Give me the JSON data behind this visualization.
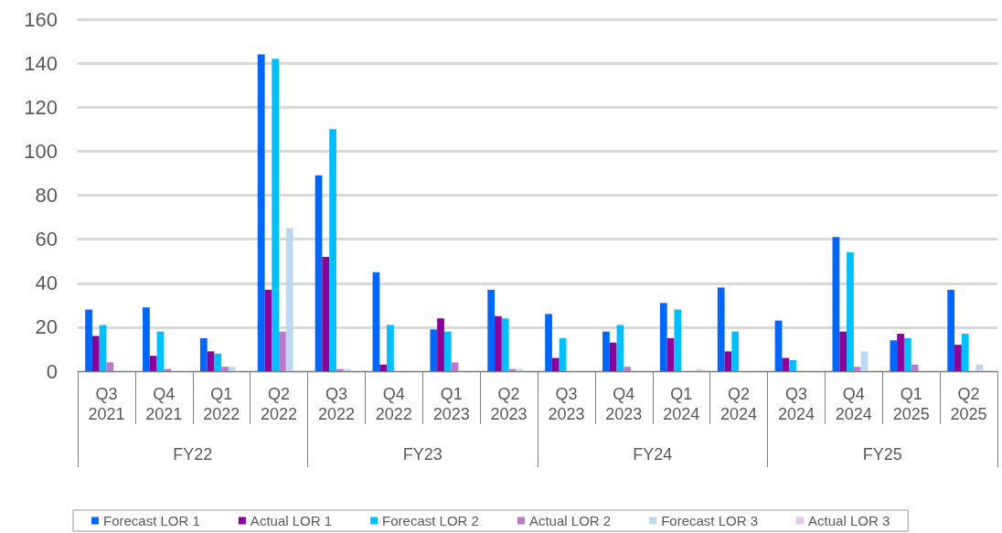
{
  "chart_data": {
    "type": "bar",
    "categories": [
      "Q3\n2021",
      "Q4\n2021",
      "Q1\n2022",
      "Q2\n2022",
      "Q3\n2022",
      "Q4\n2022",
      "Q1\n2023",
      "Q2\n2023",
      "Q3\n2023",
      "Q4\n2023",
      "Q1\n2024",
      "Q2\n2024",
      "Q3\n2024",
      "Q4\n2024",
      "Q1\n2025",
      "Q2\n2025"
    ],
    "annotations": [
      "FY22",
      "FY23",
      "FY24",
      "FY25"
    ],
    "series": [
      {
        "name": "Forecast LOR 1",
        "color": "#0066ff",
        "values": [
          28,
          29,
          15,
          144,
          89,
          45,
          19,
          37,
          26,
          18,
          31,
          38,
          23,
          61,
          14,
          37
        ]
      },
      {
        "name": "Actual LOR 1",
        "color": "#8b0099",
        "values": [
          16,
          7,
          9,
          37,
          52,
          3,
          24,
          25,
          6,
          13,
          15,
          9,
          6,
          18,
          17,
          12
        ]
      },
      {
        "name": "Forecast LOR 2",
        "color": "#00bfff",
        "values": [
          21,
          18,
          8,
          142,
          110,
          21,
          18,
          24,
          15,
          21,
          28,
          18,
          5,
          54,
          15,
          17
        ]
      },
      {
        "name": "Actual LOR 2",
        "color": "#bf77c8",
        "values": [
          4,
          1,
          2,
          18,
          1,
          0,
          4,
          1,
          0,
          2,
          0,
          0,
          0,
          2,
          3,
          0
        ]
      },
      {
        "name": "Forecast LOR 3",
        "color": "#bdd7ee",
        "values": [
          0,
          0,
          2,
          65,
          1,
          0,
          0,
          1,
          0,
          0,
          0,
          0,
          0,
          9,
          0,
          3
        ]
      },
      {
        "name": "Actual LOR 3",
        "color": "#e4c8ec",
        "values": [
          0,
          0,
          0,
          0,
          0,
          0,
          0,
          0,
          0,
          0,
          1,
          0,
          0,
          0,
          0,
          0
        ]
      }
    ],
    "ylim": [
      0,
      160
    ],
    "yticks": [
      0,
      20,
      40,
      60,
      80,
      100,
      120,
      140,
      160
    ],
    "grid": "y",
    "legend": "bottom"
  }
}
